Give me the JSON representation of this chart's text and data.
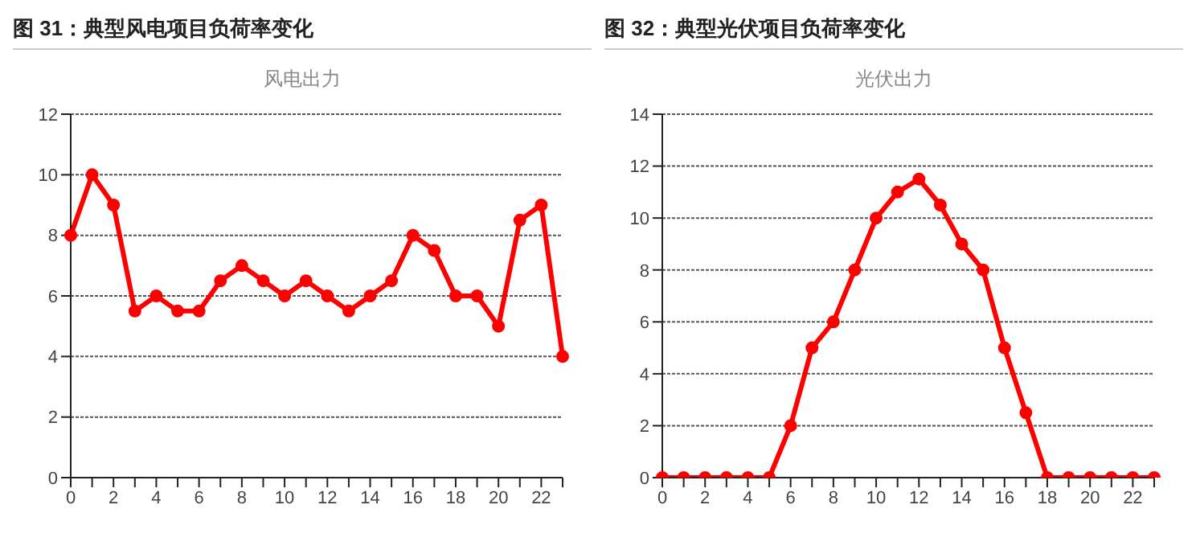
{
  "chart_data": [
    {
      "type": "line",
      "title": "图 31：典型风电项目负荷率变化",
      "subtitle": "风电出力",
      "categories": [
        "0",
        null,
        "2",
        null,
        "4",
        null,
        "6",
        null,
        "8",
        null,
        "10",
        null,
        "12",
        null,
        "14",
        null,
        "16",
        null,
        "18",
        null,
        "20",
        null,
        "22",
        null
      ],
      "series": [
        {
          "color": "#ff0000",
          "values": [
            8,
            10,
            9,
            5.5,
            6,
            5.5,
            5.5,
            6.5,
            7,
            6.5,
            6,
            6.5,
            6,
            5.5,
            6,
            6.5,
            8,
            7.5,
            6,
            6,
            5,
            8.5,
            9,
            4
          ]
        }
      ],
      "ylim": [
        0,
        12
      ],
      "yticks": [
        0,
        2,
        4,
        6,
        8,
        10,
        12
      ],
      "grid": "y",
      "marker": "circle",
      "line_style": "solid"
    },
    {
      "type": "line",
      "title": "图 32：典型光伏项目负荷率变化",
      "subtitle": "光伏出力",
      "categories": [
        "0",
        null,
        "2",
        null,
        "4",
        null,
        "6",
        null,
        "8",
        null,
        "10",
        null,
        "12",
        null,
        "14",
        null,
        "16",
        null,
        "18",
        null,
        "20",
        null,
        "22",
        null
      ],
      "series": [
        {
          "color": "#ff0000",
          "values": [
            0,
            0,
            0,
            0,
            0,
            0,
            2,
            5,
            6,
            8,
            10,
            11,
            11.5,
            10.5,
            9,
            8,
            5,
            2.5,
            0,
            0,
            0,
            0,
            0,
            0
          ]
        }
      ],
      "ylim": [
        0,
        14
      ],
      "yticks": [
        0,
        2,
        4,
        6,
        8,
        10,
        12,
        14
      ],
      "grid": "y",
      "marker": "circle",
      "line_style": "solid"
    }
  ]
}
